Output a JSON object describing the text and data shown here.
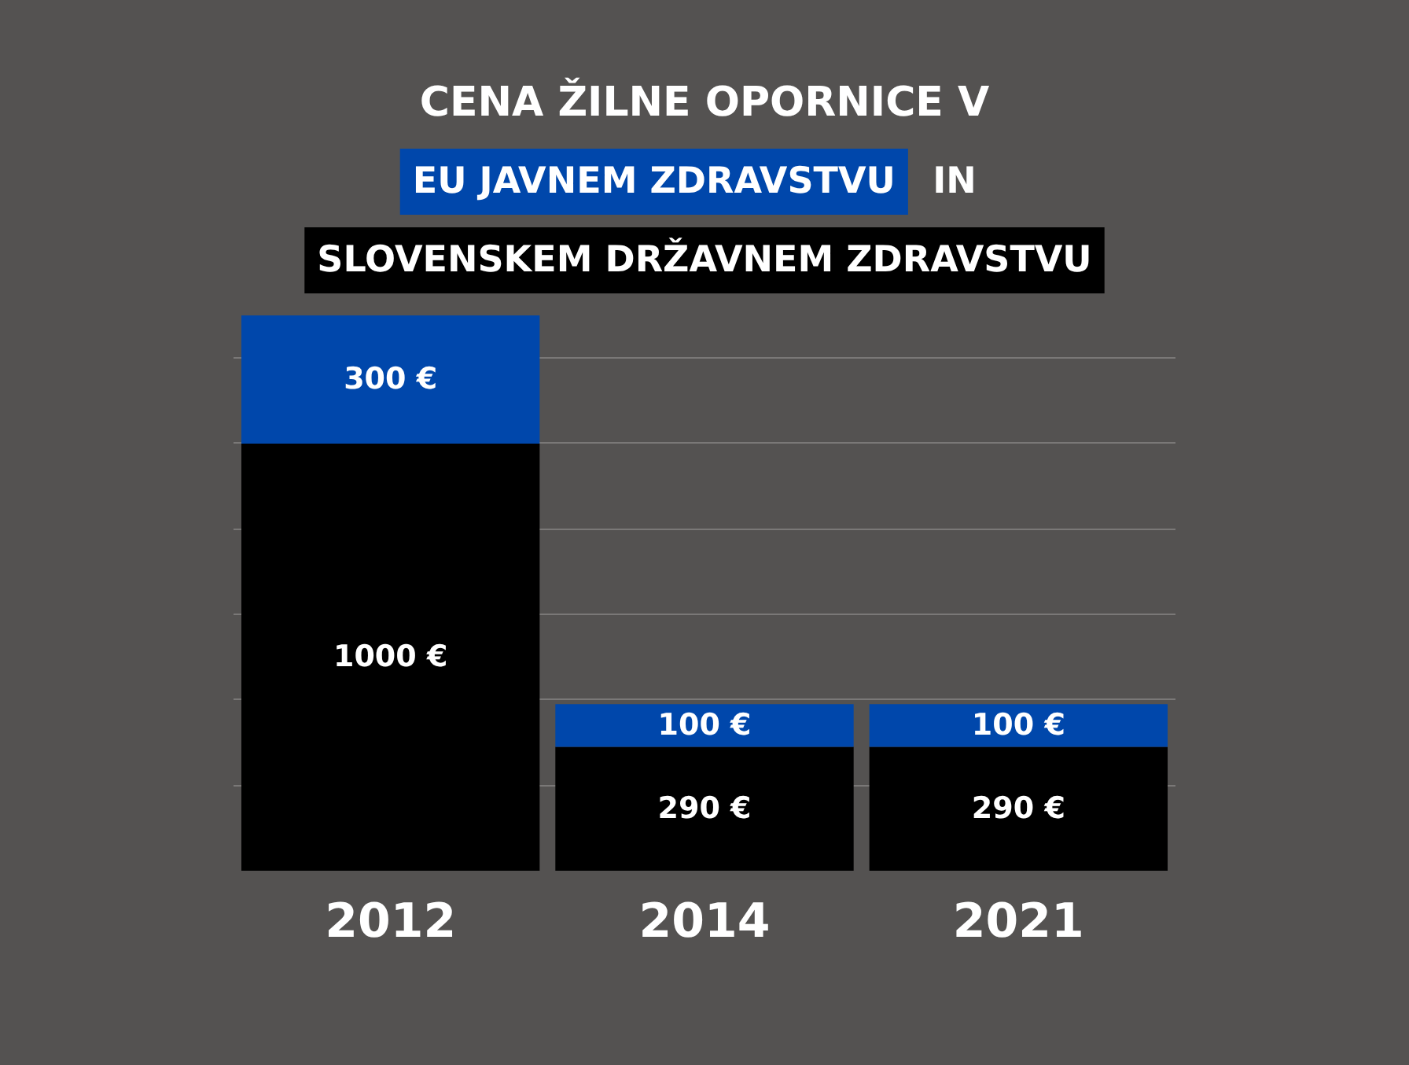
{
  "chart_data": {
    "type": "bar",
    "title": "CENA ŽILNE OPORNICE V",
    "annotations": [
      "IN"
    ],
    "categories": [
      "2012",
      "2014",
      "2021"
    ],
    "series": [
      {
        "name": "SLOVENSKEM DRŽAVNEM ZDRAVSTVU",
        "color": "#000000",
        "values": [
          1000,
          290,
          290
        ],
        "value_labels": [
          "1000 €",
          "290 €",
          "290 €"
        ]
      },
      {
        "name": "EU JAVNEM ZDRAVSTVU",
        "color": "#0047ab",
        "values": [
          300,
          100,
          100
        ],
        "value_labels": [
          "300 €",
          "100 €",
          "100 €"
        ]
      }
    ],
    "stacked": true,
    "ylim": [
      0,
      1300
    ],
    "grid": "y",
    "legend": "top",
    "tick_labels": "x"
  }
}
